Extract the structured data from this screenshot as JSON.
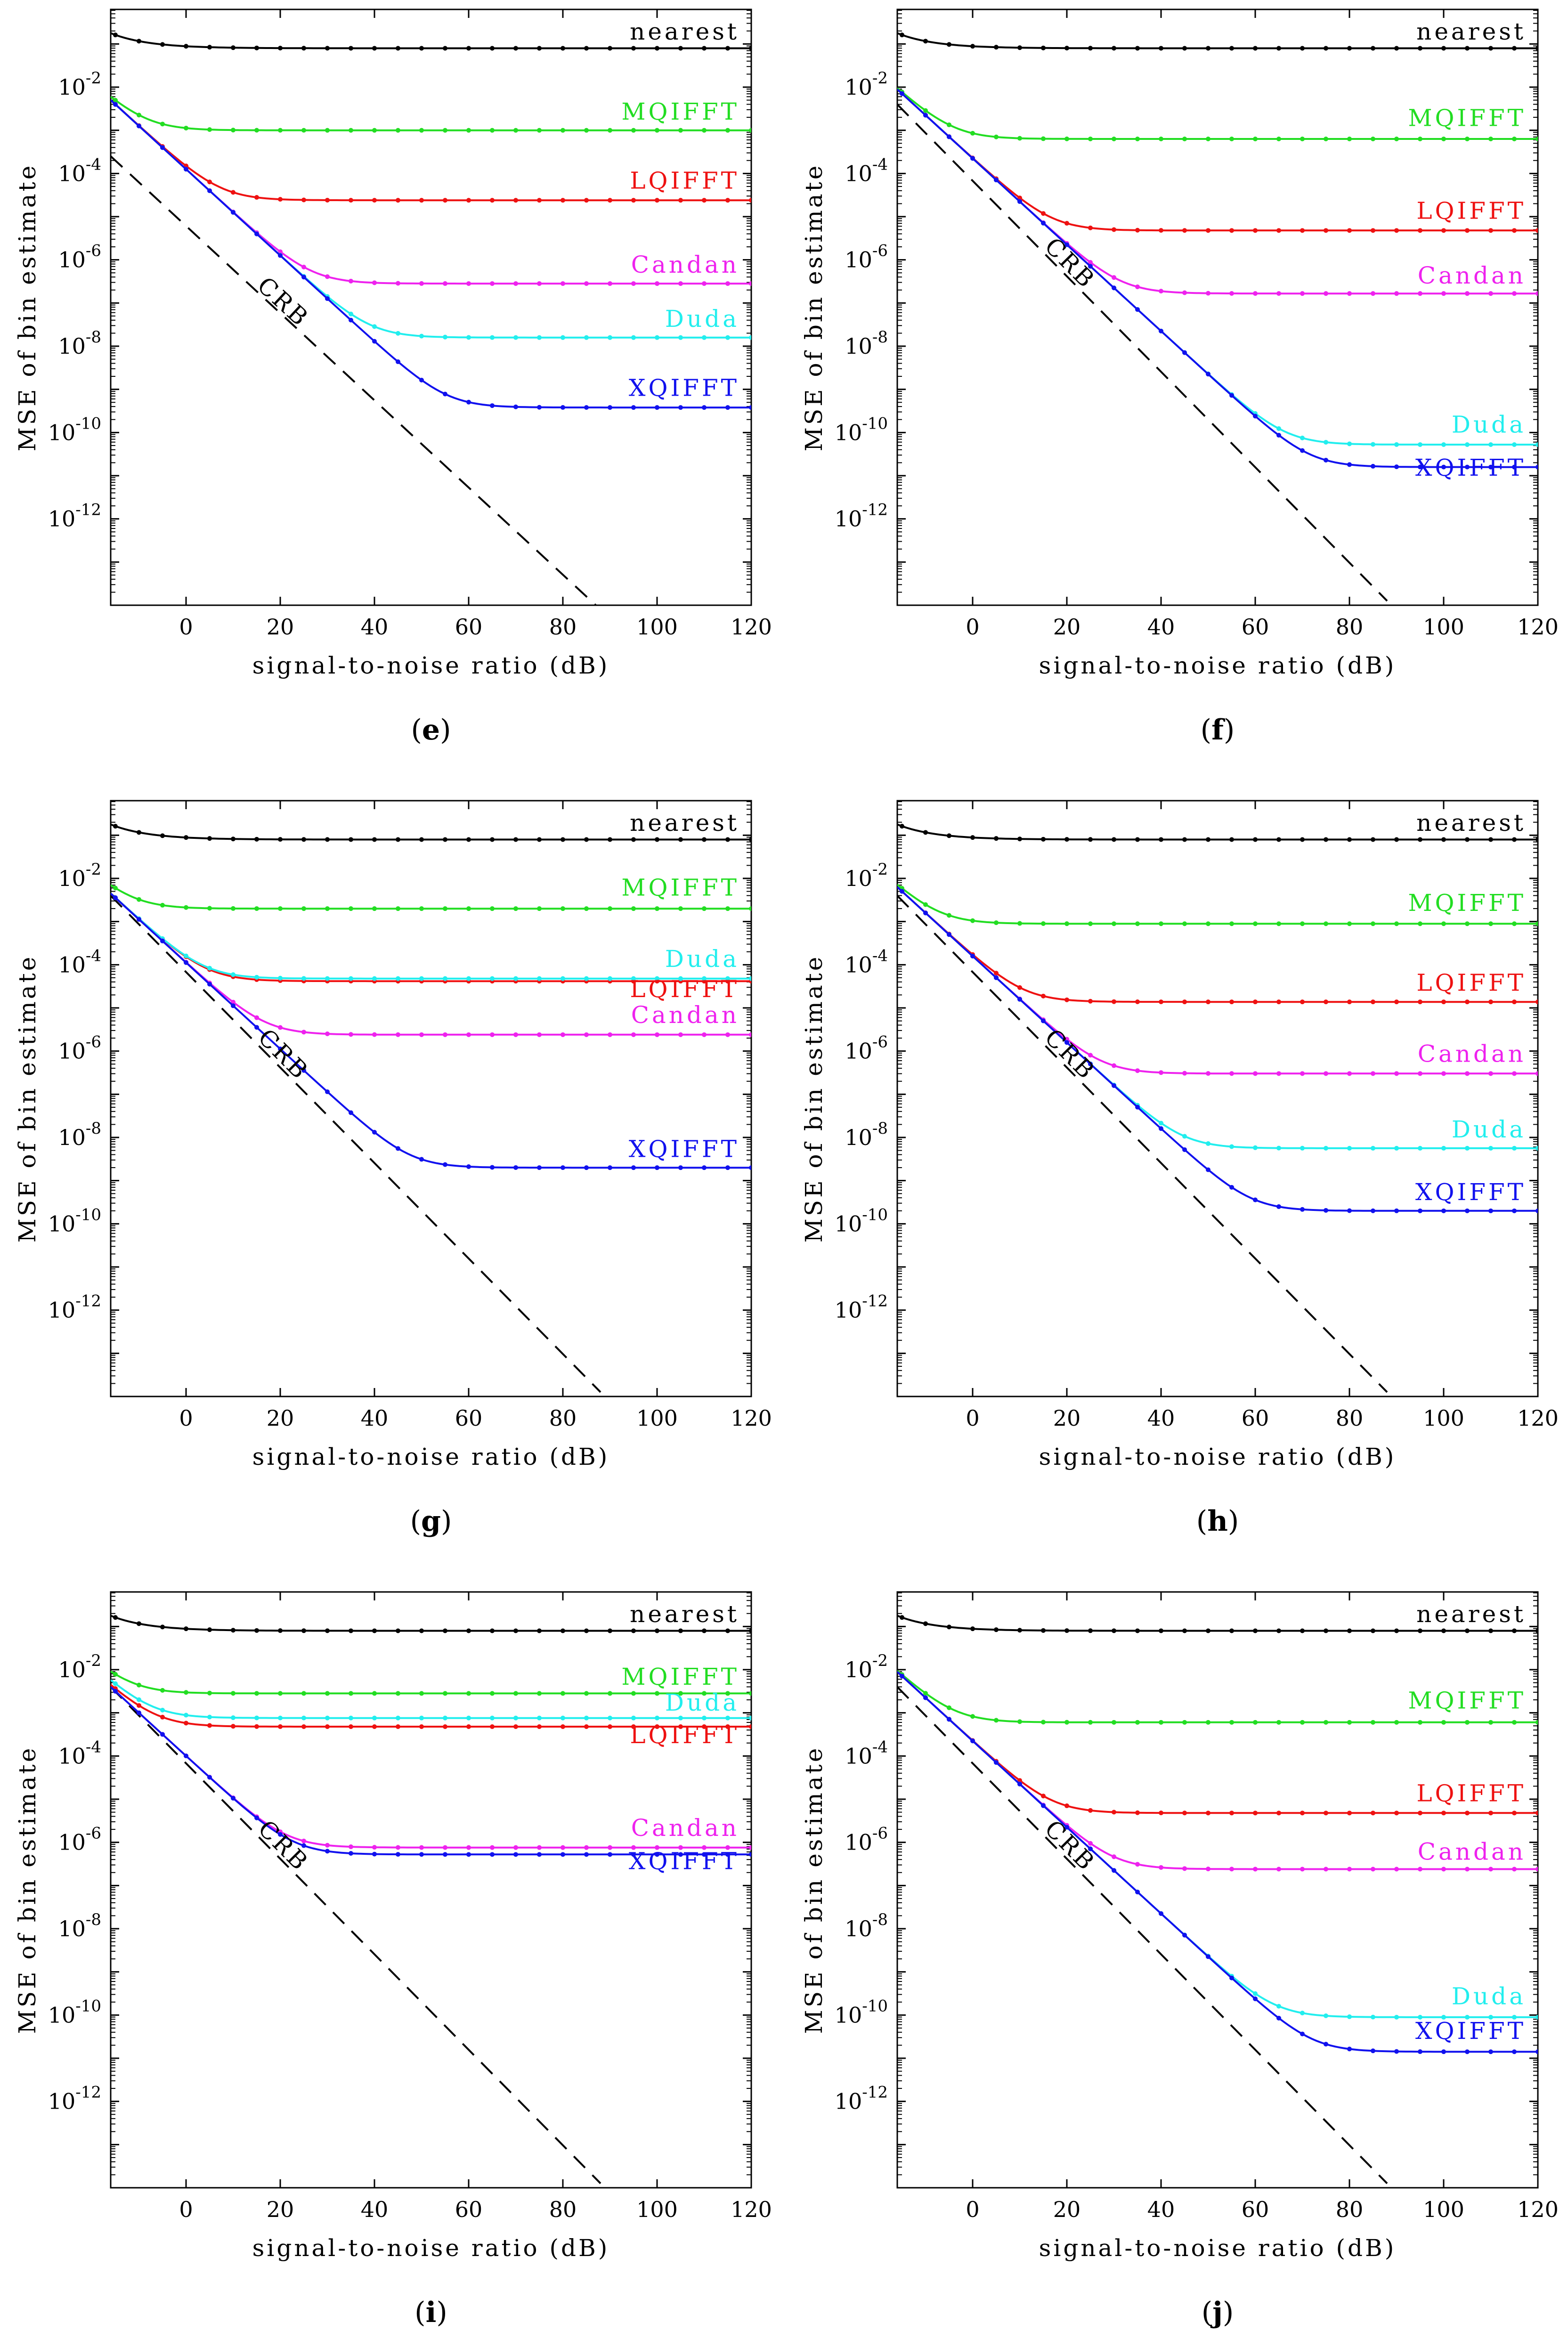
{
  "shared": {
    "xlabel": "signal-to-noise ratio (dB)",
    "ylabel": "MSE of bin estimate",
    "xlim": [
      -16,
      120
    ],
    "ylim_log10": [
      -14,
      -0.2
    ],
    "xticks": [
      0,
      20,
      40,
      60,
      80,
      100,
      120
    ],
    "xtick_labels": [
      "0",
      "20",
      "40",
      "60",
      "80",
      "100",
      "120"
    ],
    "yticks_log10": [
      -2,
      -4,
      -6,
      -8,
      -10,
      -12
    ],
    "ytick_base": "10",
    "ytick_exponents": [
      "-2",
      "-4",
      "-6",
      "-8",
      "-10",
      "-12"
    ],
    "y_scale": "log",
    "crb_label": "CRB",
    "colors": {
      "nearest": "#000000",
      "MQIFFT": "#22dd22",
      "LQIFFT": "#ee1111",
      "Candan": "#ee22ee",
      "Duda": "#22eeee",
      "XQIFFT": "#1111ee",
      "CRB": "#000000"
    }
  },
  "chart_data": [
    {
      "type": "line",
      "panel": "e",
      "crb": {
        "name": "CRB",
        "x": [
          -16,
          87
        ],
        "log10_y": [
          -3.6,
          -14
        ]
      },
      "series": [
        {
          "name": "nearest",
          "plateau_log10": -1.1,
          "start_log10": -0.75,
          "knee_snr": 2
        },
        {
          "name": "MQIFFT",
          "plateau_log10": -3.0,
          "start_log10": -2.3,
          "knee_snr": 8
        },
        {
          "name": "LQIFFT",
          "plateau_log10": -4.62,
          "start_log10": -2.3,
          "knee_snr": 22
        },
        {
          "name": "Candan",
          "plateau_log10": -6.55,
          "start_log10": -2.3,
          "knee_snr": 34
        },
        {
          "name": "Duda",
          "plateau_log10": -7.8,
          "start_log10": -2.3,
          "knee_snr": 42
        },
        {
          "name": "XQIFFT",
          "plateau_log10": -9.42,
          "start_log10": -2.3,
          "knee_snr": 58
        }
      ],
      "labels": [
        {
          "text": "nearest",
          "series": "nearest",
          "log10_y": -0.9
        },
        {
          "text": "MQIFFT",
          "series": "MQIFFT",
          "log10_y": -2.75
        },
        {
          "text": "LQIFFT",
          "series": "LQIFFT",
          "log10_y": -4.35
        },
        {
          "text": "Candan",
          "series": "Candan",
          "log10_y": -6.3
        },
        {
          "text": "Duda",
          "series": "Duda",
          "log10_y": -7.55
        },
        {
          "text": "XQIFFT",
          "series": "XQIFFT",
          "log10_y": -9.15
        }
      ],
      "caption": "e"
    },
    {
      "type": "line",
      "panel": "f",
      "crb": {
        "name": "CRB",
        "x": [
          -16,
          88
        ],
        "log10_y": [
          -2.4,
          -13.9
        ]
      },
      "series": [
        {
          "name": "nearest",
          "plateau_log10": -1.1,
          "start_log10": -0.75,
          "knee_snr": 2
        },
        {
          "name": "MQIFFT",
          "plateau_log10": -3.2,
          "start_log10": -2.05,
          "knee_snr": 10
        },
        {
          "name": "LQIFFT",
          "plateau_log10": -5.32,
          "start_log10": -2.05,
          "knee_snr": 22
        },
        {
          "name": "Candan",
          "plateau_log10": -6.78,
          "start_log10": -2.05,
          "knee_snr": 30
        },
        {
          "name": "Duda",
          "plateau_log10": -10.28,
          "start_log10": -2.05,
          "knee_snr": 68
        },
        {
          "name": "XQIFFT",
          "plateau_log10": -10.8,
          "start_log10": -2.05,
          "knee_snr": 72
        }
      ],
      "labels": [
        {
          "text": "nearest",
          "series": "nearest",
          "log10_y": -0.9
        },
        {
          "text": "MQIFFT",
          "series": "MQIFFT",
          "log10_y": -2.9
        },
        {
          "text": "LQIFFT",
          "series": "LQIFFT",
          "log10_y": -5.05
        },
        {
          "text": "Candan",
          "series": "Candan",
          "log10_y": -6.55
        },
        {
          "text": "Duda",
          "series": "Duda",
          "log10_y": -10.0
        },
        {
          "text": "XQIFFT",
          "series": "XQIFFT",
          "log10_y": -11.0
        }
      ],
      "caption": "f"
    },
    {
      "type": "line",
      "panel": "g",
      "crb": {
        "name": "CRB",
        "x": [
          -16,
          88
        ],
        "log10_y": [
          -2.4,
          -13.9
        ]
      },
      "series": [
        {
          "name": "nearest",
          "plateau_log10": -1.1,
          "start_log10": -0.75,
          "knee_snr": 2
        },
        {
          "name": "MQIFFT",
          "plateau_log10": -2.7,
          "start_log10": -2.3,
          "knee_snr": 4
        },
        {
          "name": "LQIFFT",
          "plateau_log10": -4.38,
          "start_log10": -2.35,
          "knee_snr": 12
        },
        {
          "name": "Duda",
          "plateau_log10": -4.32,
          "start_log10": -2.35,
          "knee_snr": 14
        },
        {
          "name": "Candan",
          "plateau_log10": -5.62,
          "start_log10": -2.35,
          "knee_snr": 24
        },
        {
          "name": "XQIFFT",
          "plateau_log10": -8.7,
          "start_log10": -2.35,
          "knee_snr": 52
        }
      ],
      "labels": [
        {
          "text": "nearest",
          "series": "nearest",
          "log10_y": -0.9
        },
        {
          "text": "MQIFFT",
          "series": "MQIFFT",
          "log10_y": -2.4
        },
        {
          "text": "Duda",
          "series": "Duda",
          "log10_y": -4.05
        },
        {
          "text": "LQIFFT",
          "series": "LQIFFT",
          "log10_y": -4.75
        },
        {
          "text": "Candan",
          "series": "Candan",
          "log10_y": -5.35
        },
        {
          "text": "XQIFFT",
          "series": "XQIFFT",
          "log10_y": -8.45
        }
      ],
      "caption": "g"
    },
    {
      "type": "line",
      "panel": "h",
      "crb": {
        "name": "CRB",
        "x": [
          -16,
          88
        ],
        "log10_y": [
          -2.4,
          -13.9
        ]
      },
      "series": [
        {
          "name": "nearest",
          "plateau_log10": -1.1,
          "start_log10": -0.75,
          "knee_snr": 2
        },
        {
          "name": "MQIFFT",
          "plateau_log10": -3.05,
          "start_log10": -2.2,
          "knee_snr": 8
        },
        {
          "name": "LQIFFT",
          "plateau_log10": -4.86,
          "start_log10": -2.2,
          "knee_snr": 20
        },
        {
          "name": "Candan",
          "plateau_log10": -6.52,
          "start_log10": -2.2,
          "knee_snr": 32
        },
        {
          "name": "Duda",
          "plateau_log10": -8.25,
          "start_log10": -2.2,
          "knee_snr": 50
        },
        {
          "name": "XQIFFT",
          "plateau_log10": -9.7,
          "start_log10": -2.2,
          "knee_snr": 60
        }
      ],
      "labels": [
        {
          "text": "nearest",
          "series": "nearest",
          "log10_y": -0.9
        },
        {
          "text": "MQIFFT",
          "series": "MQIFFT",
          "log10_y": -2.75
        },
        {
          "text": "LQIFFT",
          "series": "LQIFFT",
          "log10_y": -4.6
        },
        {
          "text": "Candan",
          "series": "Candan",
          "log10_y": -6.25
        },
        {
          "text": "Duda",
          "series": "Duda",
          "log10_y": -8.0
        },
        {
          "text": "XQIFFT",
          "series": "XQIFFT",
          "log10_y": -9.45
        }
      ],
      "caption": "h"
    },
    {
      "type": "line",
      "panel": "i",
      "crb": {
        "name": "CRB",
        "x": [
          -16,
          88
        ],
        "log10_y": [
          -2.4,
          -13.9
        ]
      },
      "series": [
        {
          "name": "nearest",
          "plateau_log10": -1.1,
          "start_log10": -0.75,
          "knee_snr": 2
        },
        {
          "name": "MQIFFT",
          "plateau_log10": -2.55,
          "start_log10": -2.2,
          "knee_snr": 4
        },
        {
          "name": "Duda",
          "plateau_log10": -3.12,
          "start_log10": -2.3,
          "knee_snr": 8
        },
        {
          "name": "LQIFFT",
          "plateau_log10": -3.32,
          "start_log10": -2.4,
          "knee_snr": 8
        },
        {
          "name": "Candan",
          "plateau_log10": -6.12,
          "start_log10": -2.4,
          "knee_snr": 26
        },
        {
          "name": "XQIFFT",
          "plateau_log10": -6.28,
          "start_log10": -2.4,
          "knee_snr": 26
        }
      ],
      "labels": [
        {
          "text": "nearest",
          "series": "nearest",
          "log10_y": -0.9
        },
        {
          "text": "MQIFFT",
          "series": "MQIFFT",
          "log10_y": -2.35
        },
        {
          "text": "Duda",
          "series": "Duda",
          "log10_y": -2.95
        },
        {
          "text": "LQIFFT",
          "series": "LQIFFT",
          "log10_y": -3.7
        },
        {
          "text": "Candan",
          "series": "Candan",
          "log10_y": -5.85
        },
        {
          "text": "XQIFFT",
          "series": "XQIFFT",
          "log10_y": -6.62
        }
      ],
      "caption": "i"
    },
    {
      "type": "line",
      "panel": "j",
      "crb": {
        "name": "CRB",
        "x": [
          -16,
          88
        ],
        "log10_y": [
          -2.4,
          -13.9
        ]
      },
      "series": [
        {
          "name": "nearest",
          "plateau_log10": -1.1,
          "start_log10": -0.75,
          "knee_snr": 2
        },
        {
          "name": "MQIFFT",
          "plateau_log10": -3.22,
          "start_log10": -2.05,
          "knee_snr": 10
        },
        {
          "name": "LQIFFT",
          "plateau_log10": -5.32,
          "start_log10": -2.05,
          "knee_snr": 24
        },
        {
          "name": "Candan",
          "plateau_log10": -6.62,
          "start_log10": -2.05,
          "knee_snr": 32
        },
        {
          "name": "Duda",
          "plateau_log10": -10.05,
          "start_log10": -2.05,
          "knee_snr": 70
        },
        {
          "name": "XQIFFT",
          "plateau_log10": -10.85,
          "start_log10": -2.05,
          "knee_snr": 76
        }
      ],
      "labels": [
        {
          "text": "nearest",
          "series": "nearest",
          "log10_y": -0.9
        },
        {
          "text": "MQIFFT",
          "series": "MQIFFT",
          "log10_y": -2.9
        },
        {
          "text": "LQIFFT",
          "series": "LQIFFT",
          "log10_y": -5.05
        },
        {
          "text": "Candan",
          "series": "Candan",
          "log10_y": -6.4
        },
        {
          "text": "Duda",
          "series": "Duda",
          "log10_y": -9.75
        },
        {
          "text": "XQIFFT",
          "series": "XQIFFT",
          "log10_y": -10.55
        }
      ],
      "caption": "j"
    }
  ]
}
